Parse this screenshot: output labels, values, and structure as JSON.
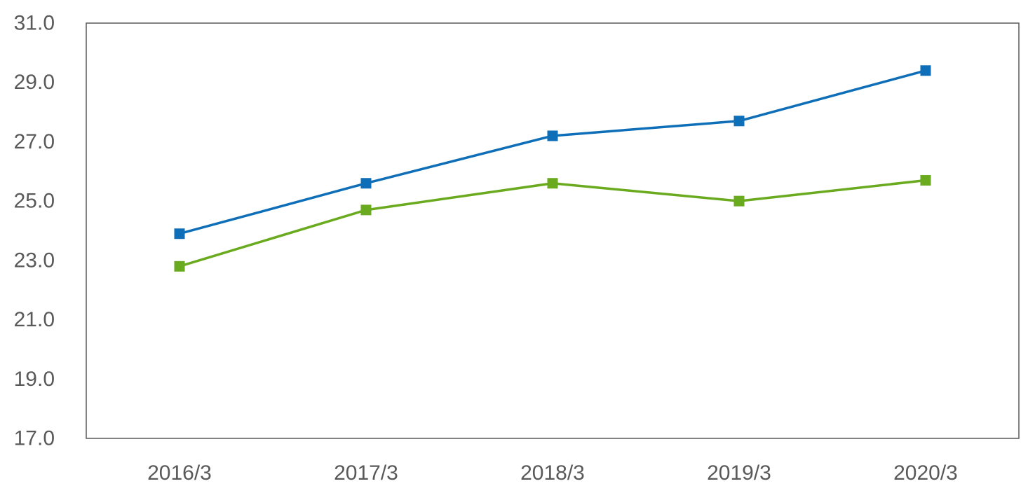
{
  "chart_data": {
    "type": "line",
    "categories": [
      "2016/3",
      "2017/3",
      "2018/3",
      "2019/3",
      "2020/3"
    ],
    "series": [
      {
        "color": "#0E6EB8",
        "values": [
          23.9,
          25.6,
          27.2,
          27.7,
          29.4
        ]
      },
      {
        "color": "#6AAA1E",
        "values": [
          22.8,
          24.7,
          25.6,
          25.0,
          25.7
        ]
      }
    ],
    "ylim": [
      17.0,
      31.0
    ],
    "yticks": [
      "17.0",
      "19.0",
      "21.0",
      "23.0",
      "25.0",
      "27.0",
      "29.0",
      "31.0"
    ],
    "grid": false,
    "marker": "square",
    "title": "",
    "xlabel": "",
    "ylabel": ""
  }
}
